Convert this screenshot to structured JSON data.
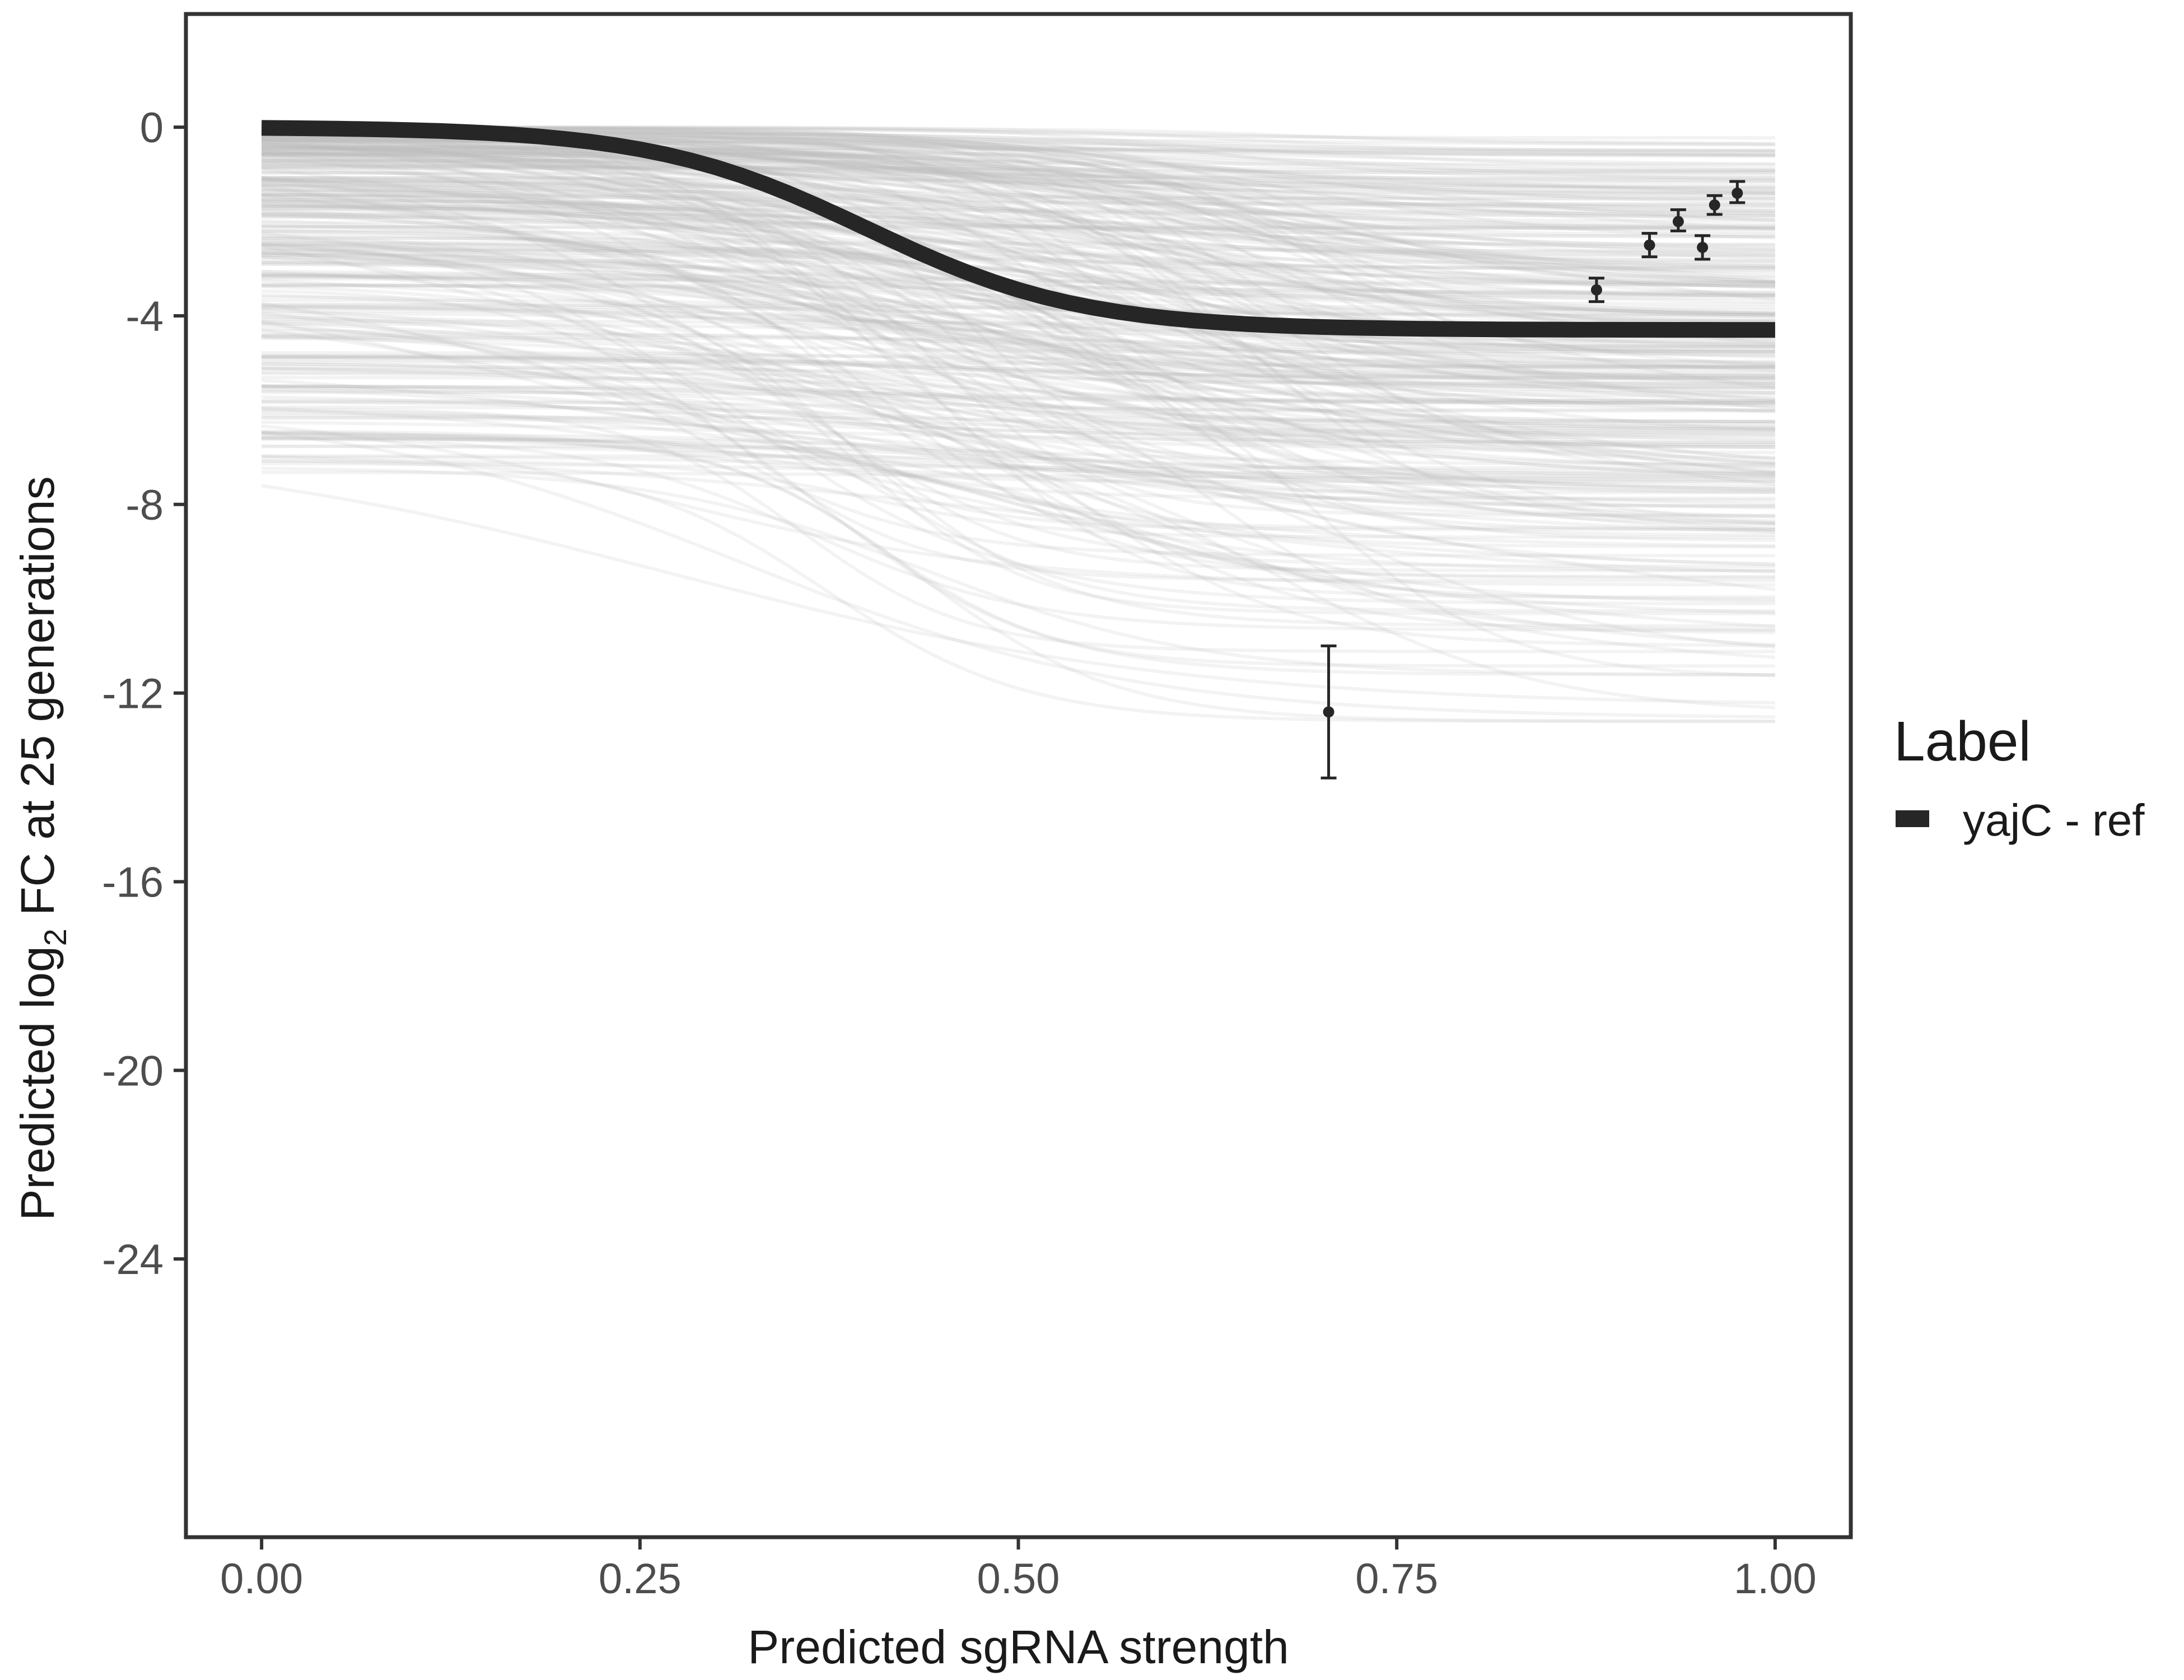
{
  "chart_data": {
    "type": "line",
    "xlabel": "Predicted sgRNA strength",
    "ylabel": {
      "prefix": "Predicted  log",
      "subscript": "2",
      "suffix": " FC at 25 generations"
    },
    "xlim": [
      -0.05,
      1.05
    ],
    "ylim": [
      -29.9,
      2.4
    ],
    "x_ticks": [
      0.0,
      0.25,
      0.5,
      0.75,
      1.0
    ],
    "x_tick_labels": [
      "0.00",
      "0.25",
      "0.50",
      "0.75",
      "1.00"
    ],
    "y_ticks": [
      0,
      -4,
      -8,
      -12,
      -16,
      -20,
      -24
    ],
    "y_tick_labels": [
      "0",
      "-4",
      "-8",
      "-12",
      "-16",
      "-20",
      "-24"
    ],
    "grid": false,
    "legend": {
      "title": "Label",
      "placement": "right",
      "entries": [
        "yajC - ref"
      ]
    },
    "series": [
      {
        "name": "yajC - ref",
        "kind": "logistic-curve",
        "y0": 0.0,
        "y_end": -4.3,
        "midpoint": 0.4,
        "steepness": 14,
        "color": "#262626"
      }
    ],
    "posterior_draws": {
      "count": 350,
      "color": "#bdbdbd",
      "y0_range": [
        -7.3,
        0.0
      ],
      "y_end_range": [
        -12.6,
        -0.1
      ]
    },
    "points": [
      {
        "x": 0.705,
        "y": -12.4,
        "ymin": -13.8,
        "ymax": -11.0
      },
      {
        "x": 0.882,
        "y": -3.45,
        "ymin": -3.7,
        "ymax": -3.2
      },
      {
        "x": 0.917,
        "y": -2.5,
        "ymin": -2.75,
        "ymax": -2.25
      },
      {
        "x": 0.936,
        "y": -2.0,
        "ymin": -2.2,
        "ymax": -1.75
      },
      {
        "x": 0.952,
        "y": -2.55,
        "ymin": -2.8,
        "ymax": -2.3
      },
      {
        "x": 0.96,
        "y": -1.65,
        "ymin": -1.85,
        "ymax": -1.45
      },
      {
        "x": 0.975,
        "y": -1.4,
        "ymin": -1.6,
        "ymax": -1.15
      }
    ],
    "colors": {
      "panel_border": "#333333",
      "points": "#262626",
      "tick": "#333333"
    }
  }
}
